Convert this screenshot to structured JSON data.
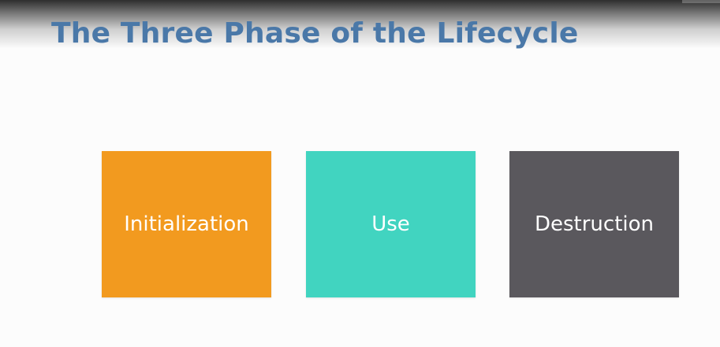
{
  "slide": {
    "title": "The Three Phase of the Lifecycle",
    "title_color": "#4a78a8",
    "background": "#fcfcfc"
  },
  "phases": [
    {
      "label": "Initialization",
      "color": "#f29a1f"
    },
    {
      "label": "Use",
      "color": "#41d4c0"
    },
    {
      "label": "Destruction",
      "color": "#5a585d"
    }
  ]
}
